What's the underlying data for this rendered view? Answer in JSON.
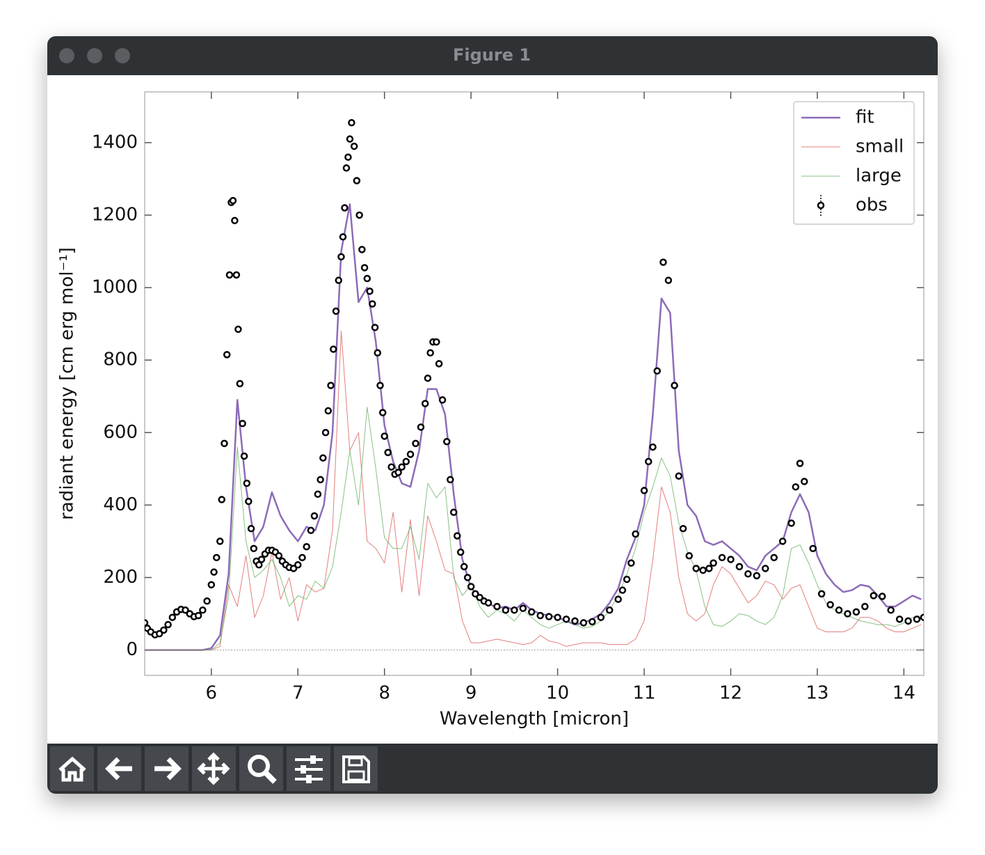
{
  "window": {
    "title": "Figure 1"
  },
  "chart_data": {
    "type": "line",
    "xlabel": "Wavelength [micron]",
    "ylabel": "radiant energy [cm erg mol⁻¹]",
    "xlim": [
      5.23,
      14.23
    ],
    "ylim": [
      -70,
      1540
    ],
    "xticks": [
      6,
      7,
      8,
      9,
      10,
      11,
      12,
      13,
      14
    ],
    "yticks": [
      0,
      200,
      400,
      600,
      800,
      1000,
      1200,
      1400
    ],
    "hlines": [
      0
    ],
    "legend": "upper right",
    "series": [
      {
        "name": "fit",
        "kind": "line",
        "color": "#8c6bb8",
        "width": 2.5,
        "x": [
          5.2,
          5.3,
          5.4,
          5.5,
          5.6,
          5.7,
          5.8,
          5.9,
          6.0,
          6.1,
          6.2,
          6.3,
          6.4,
          6.5,
          6.6,
          6.7,
          6.8,
          6.9,
          7.0,
          7.1,
          7.2,
          7.3,
          7.4,
          7.5,
          7.6,
          7.7,
          7.8,
          7.9,
          8.0,
          8.1,
          8.2,
          8.3,
          8.4,
          8.5,
          8.6,
          8.7,
          8.8,
          8.9,
          9.0,
          9.1,
          9.2,
          9.3,
          9.4,
          9.5,
          9.6,
          9.7,
          9.8,
          9.9,
          10.0,
          10.1,
          10.2,
          10.3,
          10.4,
          10.5,
          10.6,
          10.7,
          10.8,
          10.9,
          11.0,
          11.1,
          11.2,
          11.3,
          11.4,
          11.5,
          11.6,
          11.7,
          11.8,
          11.9,
          12.0,
          12.1,
          12.2,
          12.3,
          12.4,
          12.5,
          12.6,
          12.7,
          12.8,
          12.9,
          13.0,
          13.1,
          13.2,
          13.3,
          13.4,
          13.5,
          13.6,
          13.7,
          13.8,
          13.9,
          14.0,
          14.1,
          14.2
        ],
        "values": [
          0,
          0,
          0,
          0,
          0,
          0,
          0,
          0,
          5,
          40,
          210,
          690,
          450,
          300,
          340,
          435,
          370,
          330,
          300,
          340,
          330,
          400,
          600,
          1100,
          1230,
          960,
          1000,
          850,
          620,
          520,
          460,
          450,
          550,
          720,
          720,
          650,
          430,
          250,
          170,
          150,
          130,
          115,
          120,
          110,
          130,
          110,
          100,
          95,
          90,
          80,
          70,
          75,
          85,
          100,
          130,
          170,
          250,
          310,
          400,
          650,
          970,
          930,
          550,
          400,
          370,
          300,
          290,
          300,
          280,
          260,
          230,
          220,
          260,
          280,
          300,
          380,
          430,
          380,
          260,
          210,
          180,
          160,
          165,
          180,
          175,
          150,
          120,
          120,
          135,
          150,
          140
        ]
      },
      {
        "name": "small",
        "kind": "line",
        "color": "#d9544f",
        "width": 1,
        "x": [
          5.2,
          5.3,
          5.4,
          5.5,
          5.6,
          5.7,
          5.8,
          5.9,
          6.0,
          6.1,
          6.2,
          6.3,
          6.4,
          6.5,
          6.6,
          6.7,
          6.8,
          6.9,
          7.0,
          7.1,
          7.2,
          7.3,
          7.4,
          7.5,
          7.6,
          7.7,
          7.8,
          7.9,
          8.0,
          8.1,
          8.2,
          8.3,
          8.4,
          8.5,
          8.6,
          8.7,
          8.8,
          8.9,
          9.0,
          9.1,
          9.2,
          9.3,
          9.4,
          9.5,
          9.6,
          9.7,
          9.8,
          9.9,
          10.0,
          10.1,
          10.2,
          10.3,
          10.4,
          10.5,
          10.6,
          10.7,
          10.8,
          10.9,
          11.0,
          11.1,
          11.2,
          11.3,
          11.4,
          11.5,
          11.6,
          11.7,
          11.8,
          11.9,
          12.0,
          12.1,
          12.2,
          12.3,
          12.4,
          12.5,
          12.6,
          12.7,
          12.8,
          12.9,
          13.0,
          13.1,
          13.2,
          13.3,
          13.4,
          13.5,
          13.6,
          13.7,
          13.8,
          13.9,
          14.0,
          14.1,
          14.2
        ],
        "values": [
          0,
          0,
          0,
          0,
          0,
          0,
          0,
          0,
          0,
          10,
          180,
          120,
          260,
          90,
          150,
          270,
          140,
          200,
          80,
          180,
          160,
          170,
          330,
          880,
          550,
          600,
          300,
          280,
          240,
          380,
          160,
          360,
          150,
          370,
          300,
          220,
          210,
          80,
          20,
          20,
          25,
          30,
          25,
          20,
          15,
          20,
          40,
          25,
          20,
          10,
          15,
          20,
          20,
          20,
          15,
          15,
          15,
          30,
          80,
          250,
          450,
          380,
          200,
          100,
          80,
          100,
          180,
          230,
          210,
          170,
          130,
          150,
          190,
          180,
          140,
          170,
          180,
          120,
          60,
          50,
          50,
          50,
          60,
          90,
          90,
          80,
          60,
          50,
          50,
          60,
          70
        ]
      },
      {
        "name": "large",
        "kind": "line",
        "color": "#5fae5a",
        "width": 1,
        "x": [
          5.2,
          5.3,
          5.4,
          5.5,
          5.6,
          5.7,
          5.8,
          5.9,
          6.0,
          6.1,
          6.2,
          6.3,
          6.4,
          6.5,
          6.6,
          6.7,
          6.8,
          6.9,
          7.0,
          7.1,
          7.2,
          7.3,
          7.4,
          7.5,
          7.6,
          7.7,
          7.8,
          7.9,
          8.0,
          8.1,
          8.2,
          8.3,
          8.4,
          8.5,
          8.6,
          8.7,
          8.8,
          8.9,
          9.0,
          9.1,
          9.2,
          9.3,
          9.4,
          9.5,
          9.6,
          9.7,
          9.8,
          9.9,
          10.0,
          10.1,
          10.2,
          10.3,
          10.4,
          10.5,
          10.6,
          10.7,
          10.8,
          10.9,
          11.0,
          11.1,
          11.2,
          11.3,
          11.4,
          11.5,
          11.6,
          11.7,
          11.8,
          11.9,
          12.0,
          12.1,
          12.2,
          12.3,
          12.4,
          12.5,
          12.6,
          12.7,
          12.8,
          12.9,
          13.0,
          13.1,
          13.2,
          13.3,
          13.4,
          13.5,
          13.6,
          13.7,
          13.8,
          13.9,
          14.0,
          14.1,
          14.2
        ],
        "values": [
          0,
          0,
          0,
          0,
          0,
          0,
          0,
          0,
          0,
          20,
          150,
          560,
          300,
          200,
          220,
          250,
          200,
          120,
          150,
          140,
          190,
          170,
          230,
          380,
          550,
          400,
          670,
          500,
          310,
          280,
          280,
          340,
          250,
          460,
          420,
          450,
          200,
          150,
          180,
          120,
          90,
          110,
          100,
          80,
          110,
          90,
          70,
          60,
          70,
          80,
          70,
          60,
          65,
          80,
          110,
          150,
          210,
          280,
          380,
          450,
          530,
          480,
          350,
          270,
          220,
          120,
          70,
          65,
          80,
          100,
          95,
          80,
          70,
          90,
          150,
          280,
          290,
          240,
          180,
          130,
          110,
          100,
          90,
          80,
          75,
          70,
          70,
          65,
          75,
          90,
          95
        ]
      },
      {
        "name": "obs",
        "kind": "scatter",
        "color": "#000000",
        "x": [
          5.23,
          5.26,
          5.3,
          5.35,
          5.4,
          5.45,
          5.5,
          5.55,
          5.6,
          5.65,
          5.7,
          5.75,
          5.8,
          5.85,
          5.9,
          5.95,
          6.0,
          6.03,
          6.06,
          6.1,
          6.12,
          6.15,
          6.18,
          6.21,
          6.23,
          6.25,
          6.27,
          6.29,
          6.31,
          6.33,
          6.36,
          6.38,
          6.41,
          6.43,
          6.46,
          6.49,
          6.52,
          6.55,
          6.58,
          6.62,
          6.66,
          6.7,
          6.74,
          6.78,
          6.82,
          6.86,
          6.9,
          6.95,
          7.0,
          7.05,
          7.1,
          7.15,
          7.19,
          7.23,
          7.26,
          7.29,
          7.32,
          7.35,
          7.38,
          7.41,
          7.44,
          7.47,
          7.5,
          7.52,
          7.54,
          7.56,
          7.58,
          7.6,
          7.62,
          7.65,
          7.68,
          7.71,
          7.74,
          7.77,
          7.8,
          7.83,
          7.86,
          7.89,
          7.92,
          7.95,
          7.98,
          8.0,
          8.04,
          8.08,
          8.12,
          8.16,
          8.2,
          8.25,
          8.3,
          8.36,
          8.42,
          8.47,
          8.5,
          8.53,
          8.56,
          8.6,
          8.63,
          8.67,
          8.72,
          8.76,
          8.8,
          8.84,
          8.88,
          8.92,
          8.96,
          9.0,
          9.05,
          9.1,
          9.15,
          9.2,
          9.3,
          9.4,
          9.5,
          9.6,
          9.7,
          9.8,
          9.9,
          10.0,
          10.1,
          10.2,
          10.3,
          10.4,
          10.5,
          10.6,
          10.7,
          10.75,
          10.8,
          10.85,
          10.9,
          11.0,
          11.05,
          11.1,
          11.15,
          11.22,
          11.28,
          11.35,
          11.4,
          11.45,
          11.52,
          11.6,
          11.68,
          11.75,
          11.8,
          11.9,
          12.0,
          12.1,
          12.2,
          12.3,
          12.4,
          12.5,
          12.6,
          12.7,
          12.75,
          12.8,
          12.85,
          12.95,
          13.05,
          13.15,
          13.25,
          13.35,
          13.45,
          13.55,
          13.65,
          13.75,
          13.85,
          13.95,
          14.05,
          14.15,
          14.23
        ],
        "values": [
          75,
          60,
          50,
          42,
          45,
          55,
          70,
          90,
          105,
          112,
          110,
          100,
          92,
          95,
          110,
          135,
          180,
          215,
          255,
          300,
          415,
          570,
          815,
          1035,
          1235,
          1240,
          1185,
          1035,
          885,
          735,
          625,
          535,
          460,
          410,
          335,
          280,
          245,
          235,
          250,
          265,
          275,
          275,
          270,
          260,
          245,
          235,
          228,
          225,
          235,
          255,
          285,
          330,
          370,
          430,
          470,
          530,
          600,
          660,
          730,
          830,
          935,
          1020,
          1085,
          1140,
          1220,
          1330,
          1360,
          1410,
          1455,
          1390,
          1295,
          1200,
          1105,
          1055,
          1025,
          990,
          955,
          890,
          820,
          730,
          655,
          590,
          545,
          505,
          485,
          490,
          505,
          520,
          540,
          570,
          615,
          680,
          750,
          820,
          850,
          850,
          790,
          690,
          575,
          470,
          380,
          315,
          270,
          230,
          200,
          175,
          155,
          145,
          135,
          130,
          120,
          110,
          110,
          115,
          105,
          95,
          92,
          90,
          85,
          80,
          75,
          78,
          90,
          110,
          140,
          165,
          195,
          240,
          320,
          440,
          520,
          560,
          770,
          1070,
          1020,
          730,
          480,
          335,
          260,
          225,
          220,
          225,
          240,
          255,
          250,
          230,
          210,
          205,
          225,
          255,
          300,
          350,
          450,
          515,
          465,
          280,
          155,
          125,
          110,
          100,
          105,
          120,
          150,
          148,
          110,
          85,
          80,
          85,
          90
        ]
      }
    ]
  }
}
